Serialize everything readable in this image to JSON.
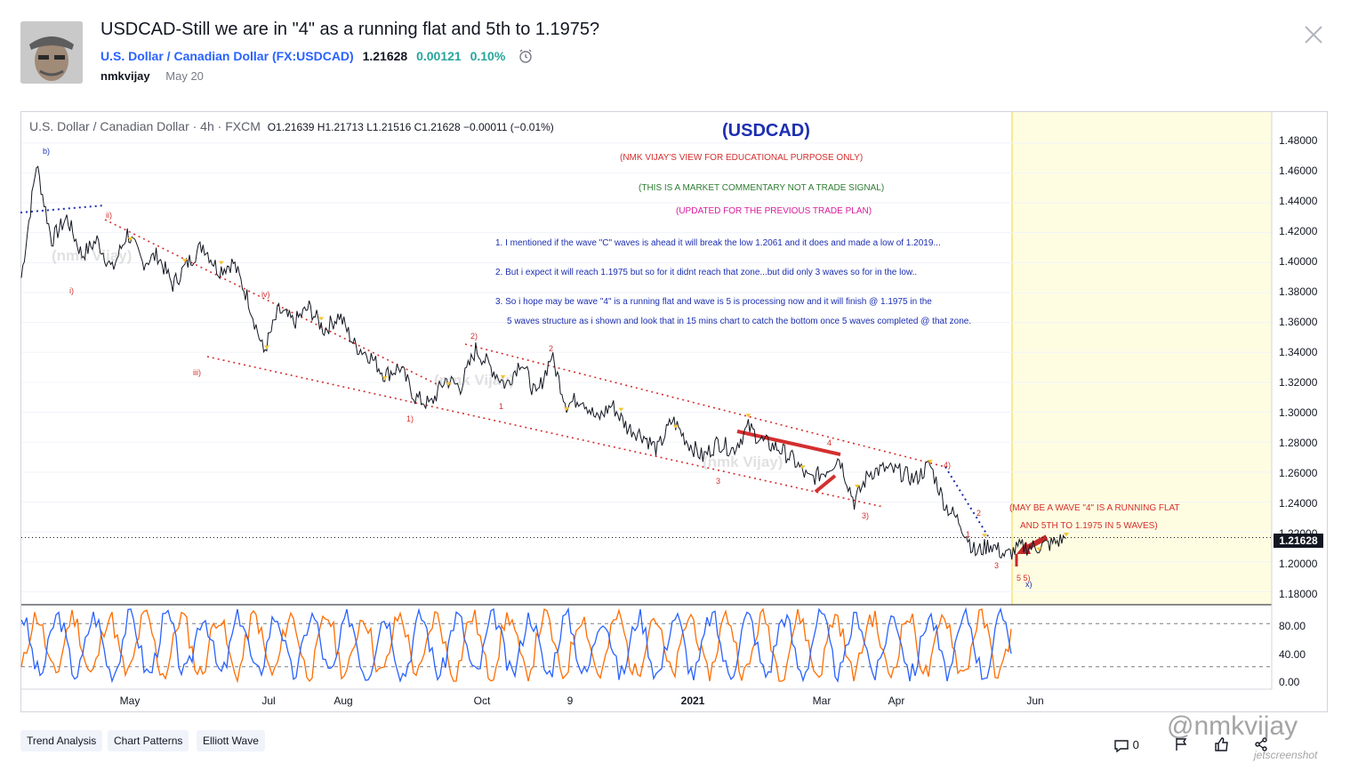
{
  "post": {
    "title": "USDCAD-Still we are in \"4\" as a running flat and 5th to 1.1975?",
    "symbol_name": "U.S. Dollar / Canadian Dollar",
    "symbol_code": "(FX:USDCAD)",
    "price": "1.21628",
    "change": "0.00121",
    "change_pct": "0.10%",
    "author": "nmkvijay",
    "date": "May 20"
  },
  "chart": {
    "legend_title": "U.S. Dollar / Canadian Dollar · 4h · FXCM",
    "ohlc": "O1.21639 H1.21713 L1.21516 C1.21628 −0.00011 (−0.01%)",
    "last_price_tag": "1.21628"
  },
  "annotations": {
    "title": "(USDCAD)",
    "line1": "(NMK VIJAY'S VIEW FOR EDUCATIONAL PURPOSE ONLY)",
    "line2": "(THIS IS A MARKET COMMENTARY NOT A TRADE SIGNAL)",
    "line3": "(UPDATED FOR THE PREVIOUS TRADE PLAN)",
    "point1": "1. I mentioned if the wave \"C\" waves is ahead it will break the low 1.2061 and it does and made a low of 1.2019...",
    "point2": "2. But i expect it will reach 1.1975 but so for it didnt reach that zone...but did only 3 waves so for in the low..",
    "point3a": "3. So i hope may be wave \"4\" is a running flat and wave is 5 is processing now and it will finish @ 1.1975 in the",
    "point3b": "5 waves structure as i shown and look that in 15 mins chart to catch the bottom once 5 waves completed @ that zone.",
    "right1": "(MAY BE A WAVE \"4\" IS A RUNNING FLAT",
    "right2": "AND 5TH TO 1.1975 IN 5 WAVES)"
  },
  "wave_labels": [
    {
      "text": "b)",
      "color": "#1c2fb0"
    },
    {
      "text": "ii)",
      "color": "#d32f2f"
    },
    {
      "text": "i)",
      "color": "#d32f2f"
    },
    {
      "text": "iv)",
      "color": "#d32f2f"
    },
    {
      "text": "iii)",
      "color": "#d32f2f"
    },
    {
      "text": "1)",
      "color": "#d32f2f"
    },
    {
      "text": "2)",
      "color": "#d32f2f"
    },
    {
      "text": "1",
      "color": "#d32f2f"
    },
    {
      "text": "2",
      "color": "#d32f2f"
    },
    {
      "text": "3",
      "color": "#d32f2f"
    },
    {
      "text": "4",
      "color": "#d32f2f"
    },
    {
      "text": "3)",
      "color": "#d32f2f"
    },
    {
      "text": "4)",
      "color": "#d32f2f"
    },
    {
      "text": "2",
      "color": "#d32f2f"
    },
    {
      "text": "1",
      "color": "#d32f2f"
    },
    {
      "text": "3",
      "color": "#d32f2f"
    },
    {
      "text": "5 5)",
      "color": "#d32f2f"
    },
    {
      "text": "x)",
      "color": "#1c2fb0"
    }
  ],
  "watermark_text": "(nmk Vijay)",
  "tags": [
    "Trend Analysis",
    "Chart Patterns",
    "Elliott Wave"
  ],
  "footer": {
    "comments": "0"
  },
  "overlay": {
    "handle": "@nmkvijay",
    "site": "jetscreenshot"
  },
  "colors": {
    "accent": "#2962ff",
    "positive": "#26a69a",
    "annotation_blue": "#1c2fb0",
    "annotation_red": "#d32f2f",
    "highlight_zone": "#fffde1",
    "stoch_k": "#2962ff",
    "stoch_d": "#ff6d00"
  },
  "chart_data": {
    "type": "line",
    "title": "U.S. Dollar / Canadian Dollar · 4h · FXCM",
    "x_ticks": [
      "May",
      "Jul",
      "Aug",
      "Oct",
      "9",
      "2021",
      "Mar",
      "Apr",
      "Jun"
    ],
    "y_ticks": [
      "1.48000",
      "1.46000",
      "1.44000",
      "1.42000",
      "1.40000",
      "1.38000",
      "1.36000",
      "1.34000",
      "1.32000",
      "1.30000",
      "1.28000",
      "1.26000",
      "1.24000",
      "1.22000",
      "1.20000",
      "1.18000"
    ],
    "ylim": [
      1.172,
      1.4935
    ],
    "oscillator_ticks": [
      "80.00",
      "40.00",
      "0.00"
    ],
    "oscillator_lim": [
      -5,
      100
    ],
    "series": [
      {
        "values": [
          1.39,
          1.466,
          1.415,
          1.43,
          1.405,
          1.415,
          1.395,
          1.42,
          1.4,
          1.405,
          1.385,
          1.4,
          1.412,
          1.395,
          1.4,
          1.375,
          1.34,
          1.368,
          1.36,
          1.37,
          1.355,
          1.365,
          1.345,
          1.338,
          1.325,
          1.33,
          1.31,
          1.305,
          1.322,
          1.317,
          1.342,
          1.33,
          1.318,
          1.335,
          1.31,
          1.338,
          1.305,
          1.31,
          1.295,
          1.305,
          1.29,
          1.285,
          1.275,
          1.295,
          1.28,
          1.27,
          1.28,
          1.275,
          1.29,
          1.28,
          1.276,
          1.268,
          1.255,
          1.26,
          1.27,
          1.24,
          1.26,
          1.262,
          1.26,
          1.255,
          1.265,
          1.238,
          1.226,
          1.206,
          1.212,
          1.204,
          1.21,
          1.21,
          1.212,
          1.216
        ]
      }
    ]
  }
}
